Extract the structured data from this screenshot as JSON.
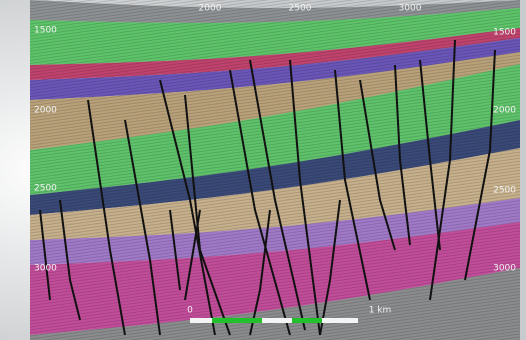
{
  "section": {
    "top_labels": [
      "2000",
      "2500",
      "3000"
    ],
    "left_labels": [
      "1500",
      "2000",
      "2500",
      "3000"
    ],
    "right_labels": [
      "1500",
      "2000",
      "2500",
      "3000"
    ],
    "scale_labels": [
      "0",
      "1 km"
    ]
  }
}
